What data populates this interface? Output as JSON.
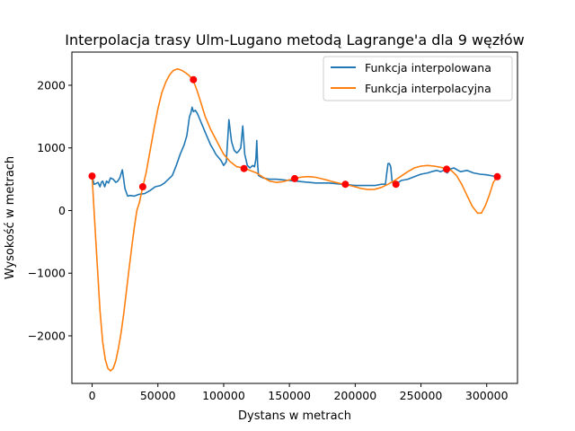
{
  "chart_data": {
    "type": "line",
    "title": "Interpolacja trasy Ulm-Lugano metodą Lagrange'a dla 9 węzłów",
    "xlabel": "Dystans w metrach",
    "ylabel": "Wysokość w metrach",
    "xlim": [
      -15400,
      323400
    ],
    "ylim": [
      -2760,
      2530
    ],
    "x_ticks": [
      0,
      50000,
      100000,
      150000,
      200000,
      250000,
      300000
    ],
    "x_tick_labels": [
      "0",
      "50000",
      "100000",
      "150000",
      "200000",
      "250000",
      "300000"
    ],
    "y_ticks": [
      -2000,
      -1000,
      0,
      1000,
      2000
    ],
    "y_tick_labels": [
      "−2000",
      "−1000",
      "0",
      "1000",
      "2000"
    ],
    "grid": false,
    "legend_position": "top-right",
    "colors": {
      "series_1": "#1f77b4",
      "series_2": "#ff7f0e",
      "nodes": "#ff0000"
    },
    "series": [
      {
        "name": "Funkcja interpolowana",
        "x": [
          0,
          1500,
          3000,
          4500,
          6000,
          7000,
          8000,
          9500,
          11000,
          12500,
          14000,
          16000,
          18000,
          19500,
          21000,
          23000,
          25000,
          27000,
          29000,
          32000,
          36000,
          40000,
          44000,
          48000,
          52000,
          55000,
          58000,
          61000,
          64000,
          67000,
          70000,
          72000,
          74000,
          75000,
          76000,
          77000,
          78500,
          80000,
          82000,
          84000,
          86000,
          88000,
          90000,
          92000,
          94000,
          96000,
          98000,
          100000,
          102000,
          104000,
          106000,
          108000,
          110000,
          111500,
          113000,
          114500,
          116000,
          118000,
          120000,
          122000,
          123500,
          124500,
          125200,
          125800,
          126500,
          128000,
          130000,
          135000,
          140000,
          145000,
          150000,
          155000,
          160000,
          170000,
          180000,
          190000,
          200000,
          210000,
          215000,
          220000,
          223000,
          224000,
          225000,
          226000,
          227000,
          228000,
          229000,
          231000,
          235000,
          240000,
          245000,
          250000,
          255000,
          258000,
          262000,
          265000,
          267000,
          270000,
          272000,
          275000,
          280000,
          285000,
          290000,
          295000,
          300000,
          305000,
          308000
        ],
        "y": [
          550,
          420,
          430,
          450,
          380,
          450,
          470,
          380,
          470,
          440,
          520,
          500,
          450,
          470,
          520,
          650,
          350,
          230,
          240,
          230,
          260,
          270,
          320,
          380,
          400,
          440,
          500,
          560,
          720,
          900,
          1050,
          1200,
          1500,
          1550,
          1650,
          1580,
          1600,
          1550,
          1450,
          1350,
          1250,
          1150,
          1050,
          980,
          900,
          850,
          800,
          720,
          780,
          1450,
          1100,
          960,
          920,
          950,
          1000,
          1350,
          900,
          720,
          680,
          720,
          700,
          820,
          1120,
          760,
          560,
          540,
          520,
          500,
          500,
          490,
          480,
          470,
          460,
          440,
          440,
          420,
          400,
          400,
          400,
          420,
          420,
          600,
          750,
          750,
          700,
          480,
          420,
          420,
          480,
          500,
          540,
          580,
          600,
          620,
          640,
          620,
          640,
          600,
          660,
          680,
          620,
          640,
          600,
          580,
          570,
          550,
          540
        ]
      },
      {
        "name": "Funkcja interpolacyjna",
        "x": [
          0,
          2000,
          4000,
          6000,
          8000,
          10000,
          12000,
          14000,
          16000,
          18000,
          20000,
          22000,
          24000,
          26000,
          28000,
          30000,
          32000,
          34000,
          36000,
          38500,
          41000,
          44000,
          47000,
          50000,
          53000,
          56000,
          59000,
          62000,
          65000,
          68000,
          71000,
          74000,
          77000,
          80000,
          83000,
          86000,
          90000,
          95000,
          100000,
          105000,
          110000,
          115000,
          120000,
          125000,
          130000,
          135000,
          140000,
          145000,
          150000,
          154000,
          158000,
          162000,
          166000,
          170000,
          174000,
          178000,
          182000,
          186000,
          190000,
          192500,
          196000,
          200000,
          205000,
          210000,
          215000,
          220000,
          225000,
          230000,
          235000,
          240000,
          245000,
          250000,
          255000,
          260000,
          265000,
          269000,
          273000,
          277000,
          281000,
          285000,
          289000,
          293000,
          296000,
          299000,
          302000,
          305000,
          308000
        ],
        "y": [
          550,
          -200,
          -900,
          -1600,
          -2100,
          -2380,
          -2520,
          -2560,
          -2520,
          -2400,
          -2200,
          -1950,
          -1650,
          -1300,
          -950,
          -600,
          -280,
          0,
          130,
          380,
          600,
          950,
          1300,
          1620,
          1880,
          2050,
          2170,
          2240,
          2260,
          2240,
          2200,
          2150,
          2070,
          1900,
          1700,
          1500,
          1300,
          1100,
          900,
          780,
          700,
          680,
          640,
          600,
          530,
          470,
          450,
          460,
          490,
          510,
          530,
          540,
          540,
          530,
          510,
          490,
          465,
          445,
          425,
          420,
          400,
          380,
          350,
          335,
          340,
          370,
          420,
          480,
          550,
          620,
          680,
          710,
          720,
          710,
          690,
          670,
          640,
          560,
          420,
          240,
          70,
          -40,
          -40,
          80,
          250,
          450,
          540
        ]
      }
    ],
    "nodes": {
      "x": [
        0,
        38500,
        77000,
        115500,
        154000,
        192500,
        231000,
        269500,
        308000
      ],
      "y": [
        550,
        380,
        2090,
        670,
        510,
        420,
        420,
        660,
        540
      ]
    }
  }
}
